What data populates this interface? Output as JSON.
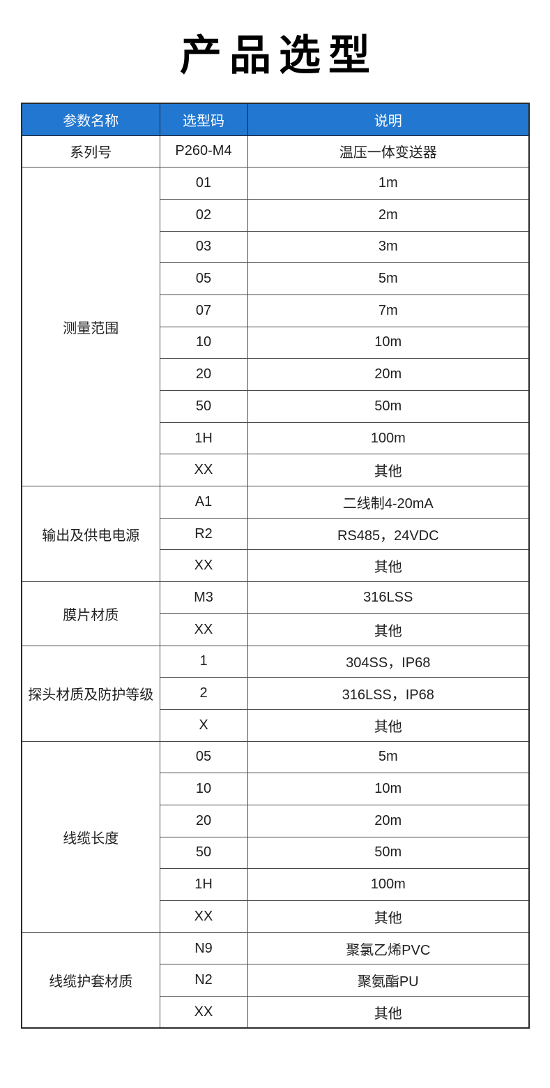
{
  "page_title": "产品选型",
  "colors": {
    "header_bg": "#2277d0",
    "header_text": "#ffffff",
    "border": "#474747",
    "outer_border": "#2b2b2b",
    "body_text": "#1f1f1f",
    "title_text": "#000000"
  },
  "table": {
    "headers": [
      "参数名称",
      "选型码",
      "说明"
    ],
    "groups": [
      {
        "name": "系列号",
        "options": [
          {
            "code": "P260-M4",
            "desc": "温压一体变送器"
          }
        ]
      },
      {
        "name": "测量范围",
        "options": [
          {
            "code": "01",
            "desc": "1m"
          },
          {
            "code": "02",
            "desc": "2m"
          },
          {
            "code": "03",
            "desc": "3m"
          },
          {
            "code": "05",
            "desc": "5m"
          },
          {
            "code": "07",
            "desc": "7m"
          },
          {
            "code": "10",
            "desc": "10m"
          },
          {
            "code": "20",
            "desc": "20m"
          },
          {
            "code": "50",
            "desc": "50m"
          },
          {
            "code": "1H",
            "desc": "100m"
          },
          {
            "code": "XX",
            "desc": "其他"
          }
        ]
      },
      {
        "name": "输出及供电电源",
        "options": [
          {
            "code": "A1",
            "desc": "二线制4-20mA"
          },
          {
            "code": "R2",
            "desc": "RS485，24VDC"
          },
          {
            "code": "XX",
            "desc": "其他"
          }
        ]
      },
      {
        "name": "膜片材质",
        "options": [
          {
            "code": "M3",
            "desc": "316LSS"
          },
          {
            "code": "XX",
            "desc": "其他"
          }
        ]
      },
      {
        "name": "探头材质及防护等级",
        "options": [
          {
            "code": "1",
            "desc": "304SS，IP68"
          },
          {
            "code": "2",
            "desc": "316LSS，IP68"
          },
          {
            "code": "X",
            "desc": "其他"
          }
        ]
      },
      {
        "name": "线缆长度",
        "options": [
          {
            "code": "05",
            "desc": "5m"
          },
          {
            "code": "10",
            "desc": "10m"
          },
          {
            "code": "20",
            "desc": "20m"
          },
          {
            "code": "50",
            "desc": "50m"
          },
          {
            "code": "1H",
            "desc": "100m"
          },
          {
            "code": "XX",
            "desc": "其他"
          }
        ]
      },
      {
        "name": "线缆护套材质",
        "options": [
          {
            "code": "N9",
            "desc": "聚氯乙烯PVC"
          },
          {
            "code": "N2",
            "desc": "聚氨酯PU"
          },
          {
            "code": "XX",
            "desc": "其他"
          }
        ]
      }
    ]
  }
}
